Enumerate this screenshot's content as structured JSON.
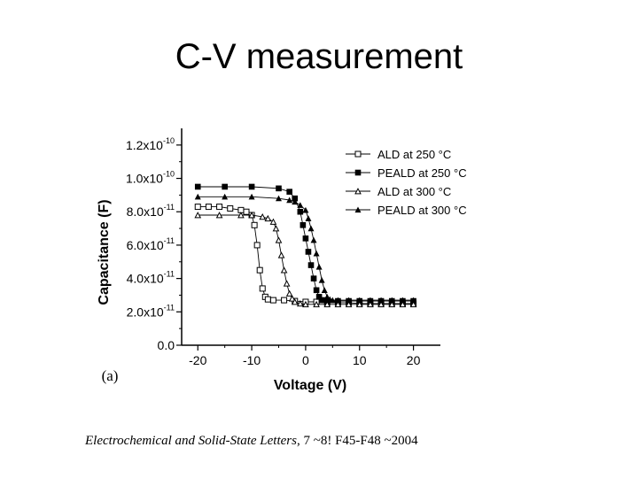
{
  "slide": {
    "title": "C-V measurement",
    "citation_journal": "Electrochemical and Solid-State Letters",
    "citation_rest": ", 7 ~8! F45-F48 ~2004"
  },
  "chart_data": {
    "type": "scatter",
    "panel_label": "(a)",
    "title": "",
    "xlabel": "Voltage (V)",
    "ylabel": "Capacitance (F)",
    "xlim": [
      -23,
      25
    ],
    "ylim": [
      0,
      1.3e-10
    ],
    "xticks": [
      -20,
      -10,
      0,
      10,
      20
    ],
    "yticks": [
      0,
      2e-11,
      4e-11,
      6e-11,
      8e-11,
      1e-10,
      1.2e-10
    ],
    "ytick_labels": [
      {
        "mantissa": "0.0",
        "exp": ""
      },
      {
        "mantissa": "2.0x10",
        "exp": "-11"
      },
      {
        "mantissa": "4.0x10",
        "exp": "-11"
      },
      {
        "mantissa": "6.0x10",
        "exp": "-11"
      },
      {
        "mantissa": "8.0x10",
        "exp": "-11"
      },
      {
        "mantissa": "1.0x10",
        "exp": "-10"
      },
      {
        "mantissa": "1.2x10",
        "exp": "-10"
      }
    ],
    "grid": false,
    "legend_position": "top-right",
    "series": [
      {
        "name": "ALD at 250 °C",
        "marker": "open-square",
        "x": [
          -20,
          -18,
          -16,
          -14,
          -12,
          -11,
          -10,
          -9.5,
          -9,
          -8.5,
          -8,
          -7.5,
          -7,
          -6,
          -4,
          -2,
          0,
          2,
          4,
          6,
          8,
          10,
          12,
          14,
          16,
          18,
          20
        ],
        "y": [
          8.3e-11,
          8.3e-11,
          8.3e-11,
          8.2e-11,
          8.1e-11,
          8e-11,
          7.8e-11,
          7.2e-11,
          6e-11,
          4.5e-11,
          3.4e-11,
          2.9e-11,
          2.75e-11,
          2.7e-11,
          2.7e-11,
          2.65e-11,
          2.6e-11,
          2.6e-11,
          2.55e-11,
          2.55e-11,
          2.55e-11,
          2.5e-11,
          2.5e-11,
          2.5e-11,
          2.5e-11,
          2.5e-11,
          2.5e-11
        ]
      },
      {
        "name": "PEALD at 250 °C",
        "marker": "filled-square",
        "x": [
          -20,
          -15,
          -10,
          -5,
          -3,
          -2,
          -1,
          -0.5,
          0,
          0.5,
          1,
          1.5,
          2,
          2.5,
          3,
          3.5,
          4,
          6,
          8,
          10,
          12,
          14,
          16,
          18,
          20
        ],
        "y": [
          9.5e-11,
          9.5e-11,
          9.5e-11,
          9.4e-11,
          9.2e-11,
          8.8e-11,
          8e-11,
          7.2e-11,
          6.4e-11,
          5.6e-11,
          4.8e-11,
          4e-11,
          3.3e-11,
          2.9e-11,
          2.7e-11,
          2.7e-11,
          2.65e-11,
          2.65e-11,
          2.65e-11,
          2.65e-11,
          2.65e-11,
          2.65e-11,
          2.65e-11,
          2.65e-11,
          2.65e-11
        ]
      },
      {
        "name": "ALD at 300 °C",
        "marker": "open-triangle",
        "x": [
          -20,
          -16,
          -12,
          -10,
          -8,
          -7,
          -6,
          -5.5,
          -5,
          -4.5,
          -4,
          -3.5,
          -3,
          -2.5,
          -2,
          -1,
          0,
          2,
          4,
          6,
          8,
          10,
          12,
          14,
          16,
          18,
          20
        ],
        "y": [
          7.8e-11,
          7.8e-11,
          7.8e-11,
          7.8e-11,
          7.7e-11,
          7.6e-11,
          7.4e-11,
          7e-11,
          6.3e-11,
          5.4e-11,
          4.5e-11,
          3.7e-11,
          3.1e-11,
          2.8e-11,
          2.6e-11,
          2.5e-11,
          2.45e-11,
          2.45e-11,
          2.45e-11,
          2.45e-11,
          2.45e-11,
          2.45e-11,
          2.45e-11,
          2.45e-11,
          2.45e-11,
          2.45e-11,
          2.45e-11
        ]
      },
      {
        "name": "PEALD at 300 °C",
        "marker": "filled-triangle",
        "x": [
          -20,
          -15,
          -10,
          -5,
          -3,
          -2,
          -1,
          0,
          0.5,
          1,
          1.5,
          2,
          2.5,
          3,
          3.5,
          4,
          4.5,
          5,
          6,
          8,
          10,
          12,
          14,
          16,
          18,
          20
        ],
        "y": [
          8.9e-11,
          8.9e-11,
          8.9e-11,
          8.8e-11,
          8.7e-11,
          8.6e-11,
          8.4e-11,
          8.1e-11,
          7.6e-11,
          7e-11,
          6.3e-11,
          5.5e-11,
          4.7e-11,
          3.9e-11,
          3.3e-11,
          2.9e-11,
          2.75e-11,
          2.7e-11,
          2.7e-11,
          2.7e-11,
          2.7e-11,
          2.7e-11,
          2.7e-11,
          2.7e-11,
          2.7e-11,
          2.7e-11
        ]
      }
    ]
  }
}
